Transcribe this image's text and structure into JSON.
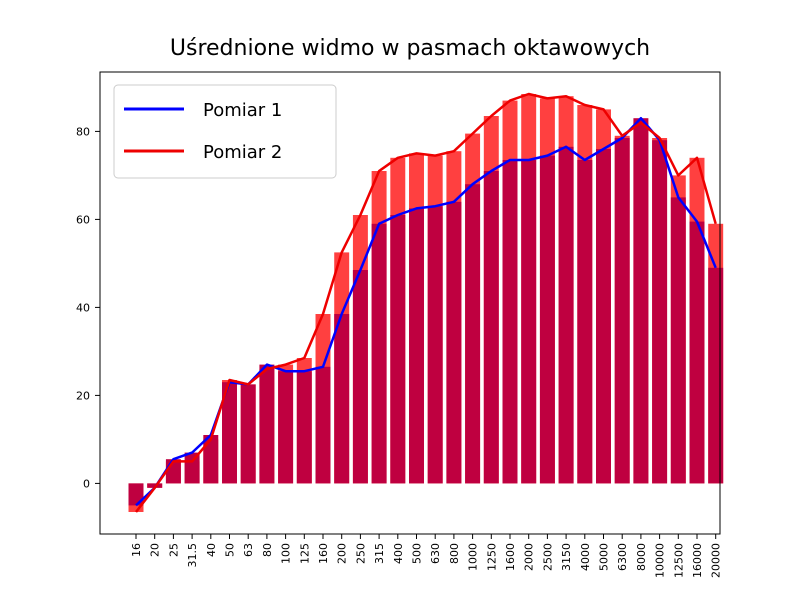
{
  "chart_data": {
    "type": "bar",
    "title": "Uśrednione widmo w pasmach oktawowych",
    "xlabel": "",
    "ylabel": "",
    "categories": [
      "16",
      "20",
      "25",
      "31.5",
      "40",
      "50",
      "63",
      "80",
      "100",
      "125",
      "160",
      "200",
      "250",
      "315",
      "400",
      "500",
      "630",
      "800",
      "1000",
      "1250",
      "1600",
      "2000",
      "2500",
      "3150",
      "4000",
      "5000",
      "6300",
      "8000",
      "10000",
      "12500",
      "16000",
      "20000"
    ],
    "yticks": [
      0,
      20,
      40,
      60,
      80
    ],
    "ylim": [
      -11.5,
      93.5
    ],
    "grid": false,
    "legend_position": "top-left",
    "series": [
      {
        "name": "Pomiar 1",
        "color": "#0000ff",
        "bar_color": "#bf0040",
        "values": [
          -5,
          -1,
          5.5,
          7,
          11,
          23,
          22.5,
          27,
          25.5,
          25.5,
          26.5,
          38.5,
          48.5,
          59,
          61,
          62.5,
          63,
          64,
          68,
          71,
          73.5,
          73.5,
          74.5,
          76.5,
          73.5,
          76,
          78.5,
          83,
          78,
          65,
          59.5,
          49
        ]
      },
      {
        "name": "Pomiar 2",
        "color": "#ee0000",
        "bar_color": "#ff4040",
        "values": [
          -6.5,
          -1,
          5,
          5,
          10,
          23.5,
          22.5,
          26,
          27,
          28.5,
          38.5,
          52.5,
          61,
          71,
          74,
          75,
          74.5,
          75.5,
          79.5,
          83.5,
          87,
          88.5,
          87.5,
          88,
          86,
          85,
          79,
          82,
          78.5,
          70,
          74,
          59
        ]
      }
    ]
  }
}
